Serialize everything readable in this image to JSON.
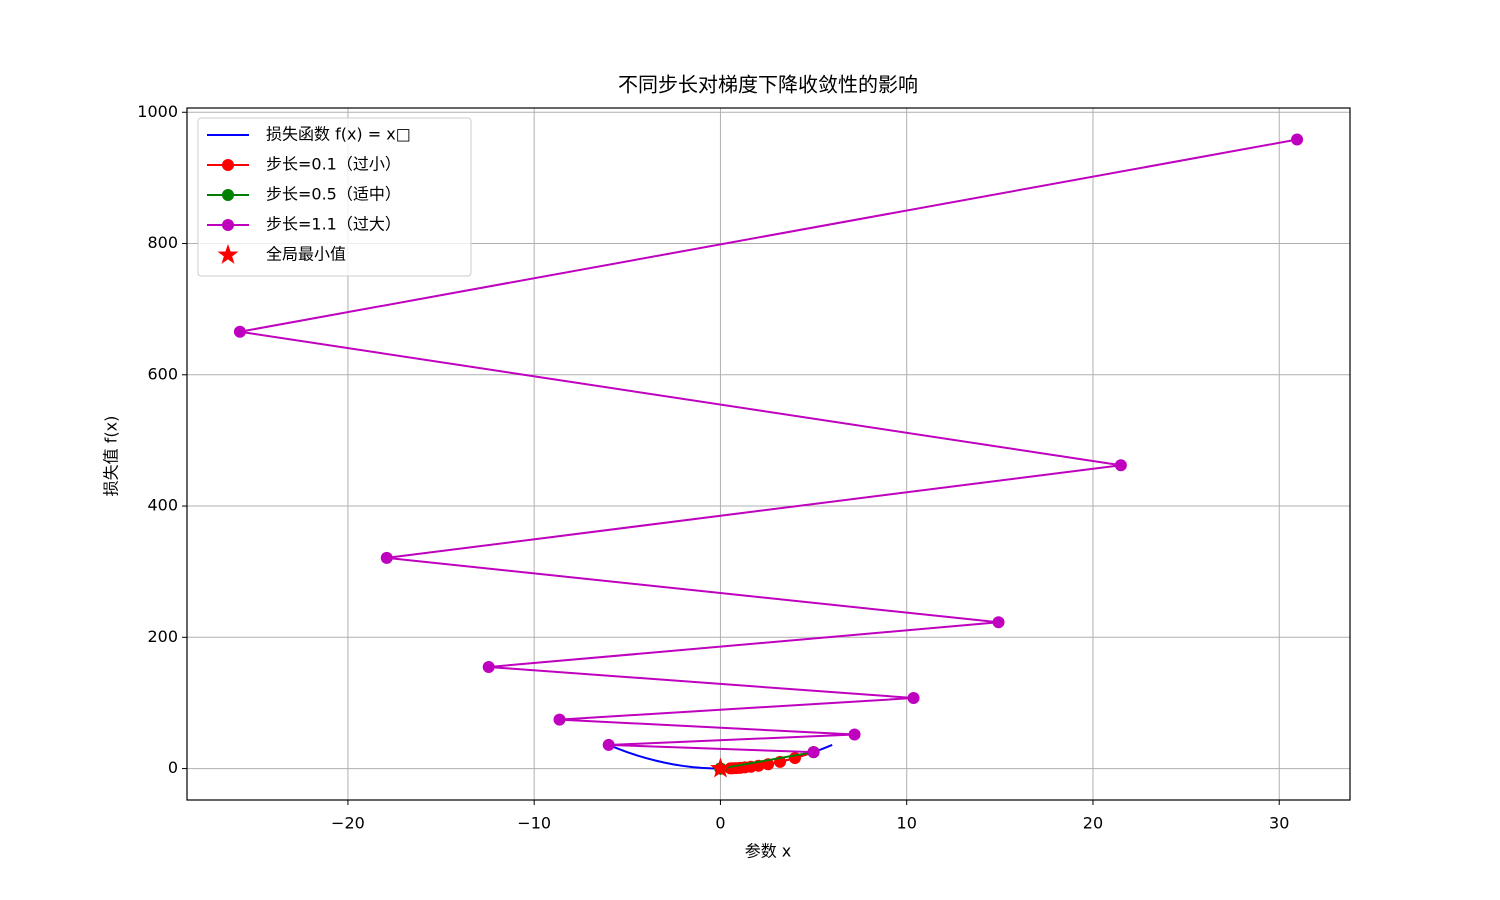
{
  "chart_data": {
    "type": "line",
    "title": "不同步长对梯度下降收敛性的影响",
    "xlabel": "参数 x",
    "ylabel": "损失值 f(x)",
    "xlim": [
      -28.64,
      33.8
    ],
    "ylim": [
      -47.9,
      1006.5
    ],
    "xticks": [
      {
        "value": -20,
        "label": "−20"
      },
      {
        "value": -10,
        "label": "−10"
      },
      0,
      10,
      20,
      30
    ],
    "yticks": [
      0,
      200,
      400,
      600,
      800,
      1000
    ],
    "grid": true,
    "legend": "upper left",
    "series": [
      {
        "name": "损失函数 f(x) = x□",
        "color": "#0000ff",
        "marker": "none",
        "x": [
          -6,
          -5.5,
          -5,
          -4.5,
          -4,
          -3.5,
          -3,
          -2.5,
          -2,
          -1.5,
          -1,
          -0.5,
          0,
          0.5,
          1,
          1.5,
          2,
          2.5,
          3,
          3.5,
          4,
          4.5,
          5,
          5.5,
          6
        ],
        "values": [
          36,
          30.25,
          25,
          20.25,
          16,
          12.25,
          9,
          6.25,
          4,
          2.25,
          1,
          0.25,
          0,
          0.25,
          1,
          2.25,
          4,
          6.25,
          9,
          12.25,
          16,
          20.25,
          25,
          30.25,
          36
        ]
      },
      {
        "name": "步长=0.1（过小）",
        "color": "#ff0000",
        "marker": "circle",
        "x": [
          5,
          4,
          3.2,
          2.56,
          2.048,
          1.6384,
          1.31072,
          1.048576,
          0.8388608,
          0.67108864,
          0.536870912
        ],
        "values": [
          25,
          16,
          10.24,
          6.5536,
          4.194304,
          2.68435456,
          1.7179869184,
          1.099511627776,
          0.70368744177664,
          0.450359962737,
          0.288230376151
        ]
      },
      {
        "name": "步长=0.5（适中）",
        "color": "#008000",
        "marker": "circle",
        "x": [
          5,
          0,
          0,
          0,
          0,
          0,
          0,
          0,
          0,
          0,
          0
        ],
        "values": [
          25,
          0,
          0,
          0,
          0,
          0,
          0,
          0,
          0,
          0,
          0
        ]
      },
      {
        "name": "步长=1.1（过大）",
        "color": "#bf00bf",
        "marker": "circle",
        "x": [
          5,
          -6,
          7.2,
          -8.64,
          10.368,
          -12.4416,
          14.92992,
          -17.915904,
          21.4990848,
          -25.79890176,
          30.958682112
        ],
        "values": [
          25,
          36,
          51.84,
          74.6496,
          107.495424,
          154.7934,
          222.9025,
          320.9796,
          462.2106,
          665.5833,
          958.44
        ]
      },
      {
        "name": "全局最小值",
        "color": "#ff0000",
        "marker": "star",
        "scatter": true,
        "x": [
          0
        ],
        "values": [
          0
        ]
      }
    ]
  }
}
